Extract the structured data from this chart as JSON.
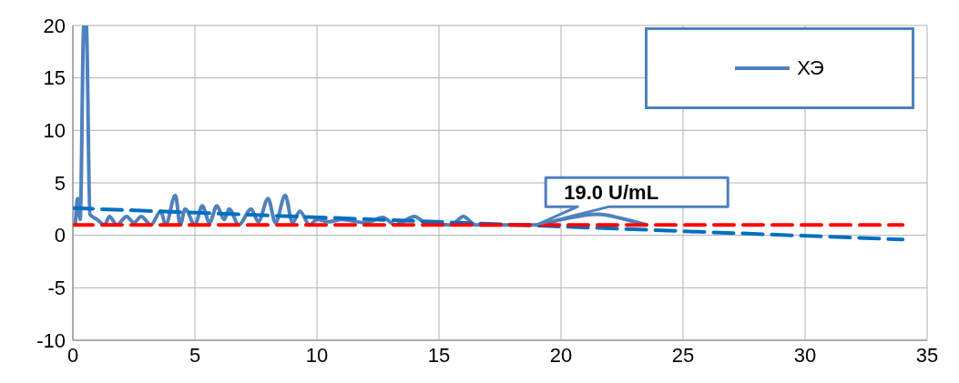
{
  "chart_data": {
    "type": "line",
    "xlim": [
      0,
      35
    ],
    "xticks": [
      0,
      5,
      10,
      15,
      20,
      25,
      30,
      35
    ],
    "ylim": [
      -10,
      20
    ],
    "yticks": [
      -10,
      -5,
      0,
      5,
      10,
      15,
      20
    ],
    "grid": true,
    "legend": "top right",
    "marker": "none",
    "annotations": [
      {
        "text": "19.0 U/mL",
        "x": 19,
        "y": 1
      }
    ],
    "series": [
      {
        "name": "ХЭ",
        "color": "#4f81bd",
        "line_style": "solid",
        "x": [
          0.1,
          0.2,
          0.3,
          0.45,
          0.55,
          0.7,
          1,
          1.3,
          1.5,
          1.8,
          2.2,
          2.5,
          2.8,
          3.2,
          3.6,
          3.8,
          4.2,
          4.4,
          4.6,
          5,
          5.3,
          5.6,
          5.9,
          6.2,
          6.4,
          6.8,
          7.3,
          7.6,
          8,
          8.3,
          8.7,
          9,
          9.3,
          9.7,
          10,
          10.5,
          11,
          12,
          12.7,
          13.2,
          14,
          14.5,
          15.5,
          16,
          16.5,
          17,
          19,
          20,
          21.5,
          22.5,
          23.5
        ],
        "values": [
          1,
          3.5,
          1.5,
          20,
          20,
          2,
          1.5,
          1,
          1.8,
          1,
          1.8,
          1.2,
          1.8,
          1,
          2.3,
          1,
          3.8,
          1,
          2.5,
          1,
          2.8,
          1.2,
          2.8,
          1.5,
          2.5,
          1,
          2.5,
          1.3,
          3.5,
          1.2,
          3.8,
          1.2,
          2.3,
          1,
          1.5,
          1.3,
          1.5,
          1.2,
          1.7,
          1,
          1.8,
          1.1,
          1,
          1.8,
          1,
          1,
          1,
          1.5,
          2,
          1.6,
          1
        ]
      },
      {
        "color": "#0070c0",
        "line_style": "dashed",
        "x": [
          0,
          34
        ],
        "values": [
          2.6,
          -0.4
        ]
      },
      {
        "color": "#ff0000",
        "line_style": "dashed",
        "x": [
          0,
          34
        ],
        "values": [
          1,
          1
        ]
      }
    ]
  }
}
